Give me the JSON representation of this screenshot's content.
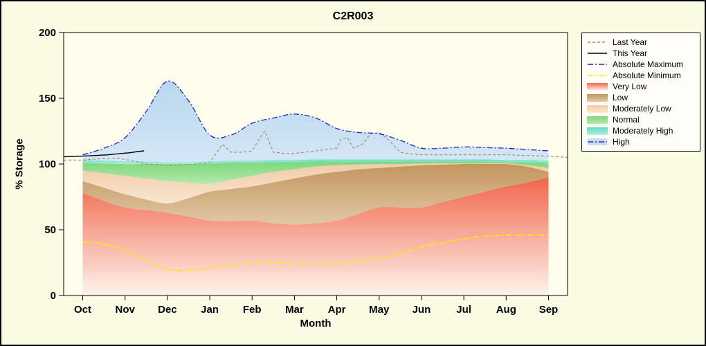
{
  "chart_data": {
    "type": "area",
    "title": "C2R003",
    "xlabel": "Month",
    "ylabel": "% Storage",
    "ylim": [
      0,
      200
    ],
    "yticks": [
      0,
      50,
      100,
      150,
      200
    ],
    "categories": [
      "Oct",
      "Nov",
      "Dec",
      "Jan",
      "Feb",
      "Mar",
      "Apr",
      "May",
      "Jun",
      "Jul",
      "Aug",
      "Sep"
    ],
    "xlim": [
      -0.45,
      11.45
    ],
    "x": [
      0,
      0.5,
      1,
      1.5,
      2,
      2.5,
      3,
      3.5,
      4,
      4.5,
      5,
      5.5,
      6,
      6.5,
      7,
      7.5,
      8,
      8.5,
      9,
      9.5,
      10,
      10.5,
      11
    ],
    "colors": {
      "outer_bg": "#fbfce4",
      "plot_bg": "#fdfeee",
      "frame": "#000000"
    },
    "boundaries": {
      "zero": 0,
      "very_low_top": [
        78,
        72,
        67,
        65,
        63,
        60,
        57,
        56.5,
        57,
        55,
        54,
        55,
        57,
        62,
        67,
        67,
        67,
        71,
        75,
        79,
        83,
        86,
        90
      ],
      "low_top": [
        87,
        82,
        77,
        73,
        70,
        74,
        79,
        81,
        83,
        86,
        89,
        92,
        94,
        96,
        97,
        98,
        99,
        99.5,
        100,
        100,
        100,
        98,
        94
      ],
      "mod_low_top": [
        95,
        93,
        91,
        89,
        87,
        86,
        85,
        88,
        91,
        94,
        96,
        98,
        99,
        99.5,
        100,
        100,
        100.5,
        100.5,
        100.5,
        100.5,
        100.5,
        99,
        97
      ],
      "normal_top": [
        101,
        100.5,
        100,
        100,
        100,
        100,
        100.5,
        101,
        101,
        101.5,
        101.5,
        102,
        102,
        102,
        102,
        102,
        102,
        102,
        102,
        102,
        101.5,
        101.5,
        101
      ],
      "mod_high_top": [
        103,
        102.5,
        102,
        102,
        101.5,
        101.5,
        102,
        102.5,
        102.5,
        103,
        103,
        103.5,
        103.5,
        103.5,
        103.5,
        103.5,
        103.5,
        103.5,
        103.5,
        103.5,
        103,
        103,
        102.5
      ],
      "abs_max": [
        107,
        112,
        120,
        140,
        163,
        148,
        122,
        122,
        131,
        135,
        138,
        135,
        127,
        124,
        123,
        118,
        112,
        112,
        113,
        112.5,
        112,
        111,
        110
      ],
      "abs_min": [
        41,
        39,
        35,
        27,
        20,
        19,
        21,
        23,
        25,
        25,
        24,
        24,
        24,
        26,
        28,
        32,
        37,
        40,
        43,
        45,
        46,
        46,
        46
      ]
    },
    "bands": [
      {
        "name": "Very Low",
        "lower": "zero",
        "upper": "very_low_top",
        "top_color": "#f2664b",
        "bottom_color": "#fdf3ec"
      },
      {
        "name": "Low",
        "lower": "very_low_top",
        "upper": "low_top",
        "top_color": "#c3955e",
        "bottom_color": "#e0c8a6"
      },
      {
        "name": "Moderately Low",
        "lower": "low_top",
        "upper": "mod_low_top",
        "top_color": "#f0cba8",
        "bottom_color": "#f9e6cf"
      },
      {
        "name": "Normal",
        "lower": "mod_low_top",
        "upper": "normal_top",
        "top_color": "#7ed77a",
        "bottom_color": "#b2e9ac"
      },
      {
        "name": "Moderately High",
        "lower": "normal_top",
        "upper": "mod_high_top",
        "top_color": "#5fdfc8",
        "bottom_color": "#aeeedd"
      },
      {
        "name": "High",
        "lower": "mod_high_top",
        "upper": "abs_max",
        "top_color": "#b9d6ee",
        "bottom_color": "#d4e7f6"
      }
    ],
    "lines": [
      {
        "name": "Absolute Minimum",
        "boundary": "abs_min",
        "color": "#ffe60a",
        "style": "dashdot",
        "width": 1.9,
        "smooth": true
      },
      {
        "name": "Last Year",
        "x": [
          -0.45,
          0,
          0.4,
          0.8,
          1.1,
          1.5,
          2,
          2.5,
          3,
          3.15,
          3.3,
          3.5,
          3.8,
          4,
          4.15,
          4.3,
          4.5,
          4.8,
          5,
          5.5,
          6,
          6.1,
          6.25,
          6.4,
          6.6,
          6.8,
          7,
          7.2,
          7.5,
          7.8,
          8,
          8.5,
          9,
          9.5,
          10,
          10.5,
          11,
          11.45
        ],
        "y": [
          103,
          103,
          104,
          104.5,
          103,
          100,
          99,
          99.5,
          101,
          108,
          115,
          109,
          109,
          110,
          118,
          125,
          109,
          108,
          108,
          110,
          112,
          119,
          120,
          112,
          115,
          123,
          124,
          119,
          109,
          107.5,
          107,
          107,
          107,
          107,
          107,
          106.5,
          106,
          105
        ],
        "color": "#a08a62",
        "style": "dash",
        "width": 1.1,
        "smooth": false
      },
      {
        "name": "Absolute Maximum",
        "boundary": "abs_max",
        "color": "#2222cc",
        "style": "dashdot",
        "width": 1.3,
        "smooth": true
      },
      {
        "name": "This Year",
        "x": [
          -0.45,
          0,
          0.3,
          0.6,
          0.9,
          1.1,
          1.3,
          1.45
        ],
        "y": [
          105.5,
          106,
          106.5,
          107,
          108,
          108.5,
          109.5,
          110
        ],
        "color": "#000000",
        "style": "solid",
        "width": 1.4,
        "smooth": false
      }
    ],
    "legend": [
      {
        "label": "Last Year",
        "swatch": "line",
        "color": "#a08a62",
        "style": "dash"
      },
      {
        "label": "This Year",
        "swatch": "line",
        "color": "#000000",
        "style": "solid"
      },
      {
        "label": "Absolute Maximum",
        "swatch": "line",
        "color": "#2222cc",
        "style": "dashdot"
      },
      {
        "label": "Absolute Minimum",
        "swatch": "line",
        "color": "#ffe60a",
        "style": "dashdot"
      },
      {
        "label": "Very Low",
        "swatch": "fill",
        "color": "#f2664b",
        "color2": "#fdf3ec"
      },
      {
        "label": "Low",
        "swatch": "fill",
        "color": "#c3955e",
        "color2": "#e0c8a6"
      },
      {
        "label": "Moderately Low",
        "swatch": "fill",
        "color": "#f0cba8",
        "color2": "#f9e6cf"
      },
      {
        "label": "Normal",
        "swatch": "fill",
        "color": "#7ed77a",
        "color2": "#b2e9ac"
      },
      {
        "label": "Moderately High",
        "swatch": "fill",
        "color": "#5fdfc8",
        "color2": "#aeeedd"
      },
      {
        "label": "High",
        "swatch": "fill-line",
        "color": "#2222cc",
        "fill": "#c9def1",
        "style": "dashdot"
      }
    ]
  }
}
